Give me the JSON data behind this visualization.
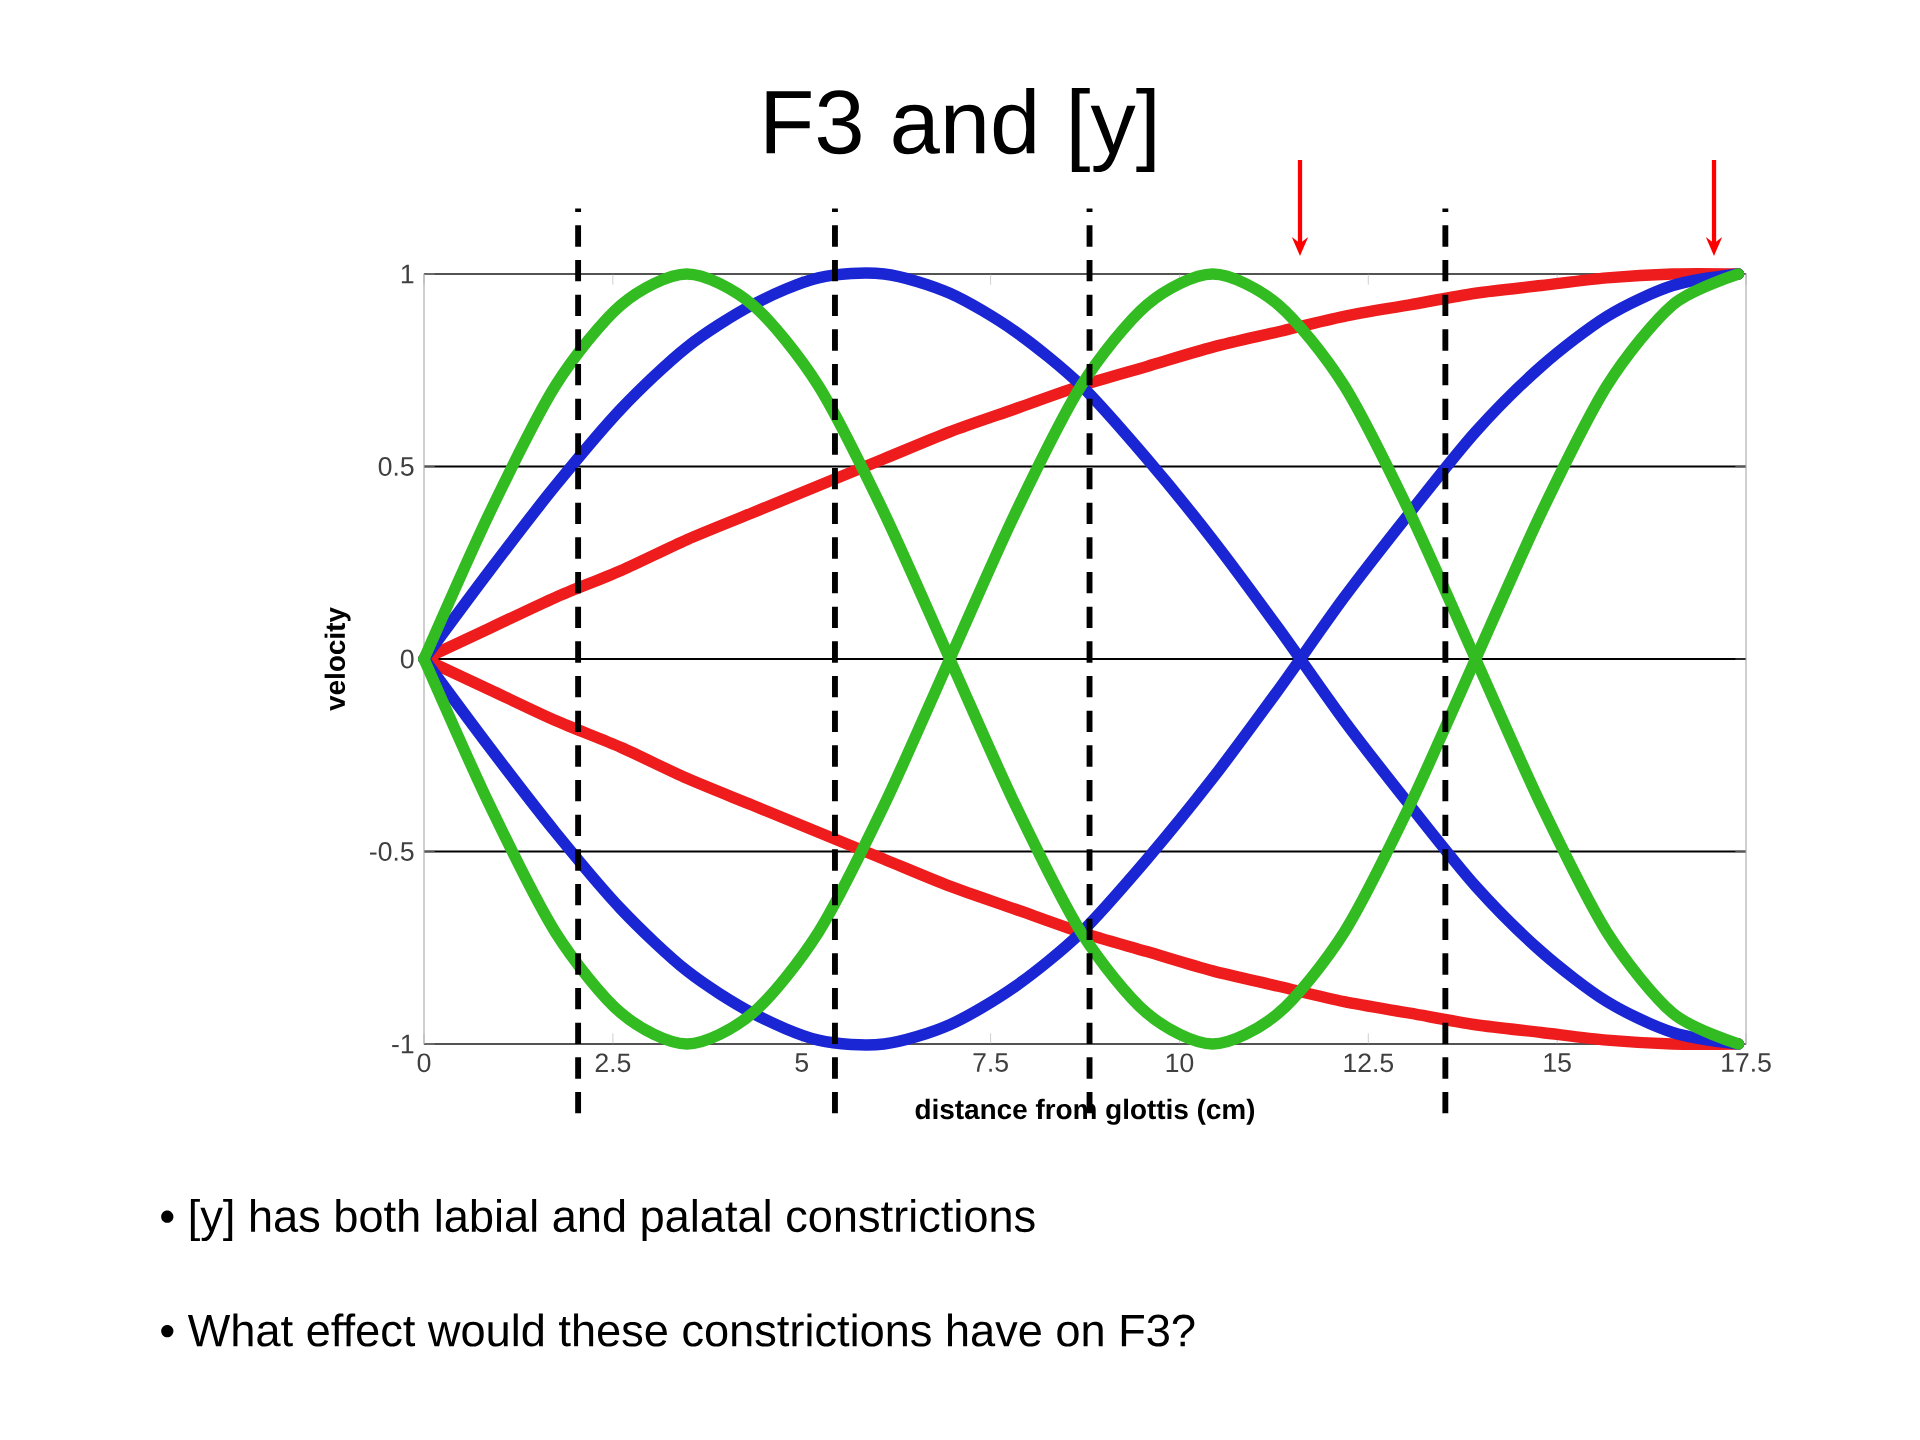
{
  "chart_data": {
    "type": "line",
    "title": "F3 and [y]",
    "xlabel": "distance from glottis (cm)",
    "ylabel": "velocity",
    "annotations": [
      "• [y] has both labial and palatal constrictions",
      "• What effect would these constrictions have on F3?"
    ],
    "x": [
      0,
      0.87,
      1.74,
      2.61,
      3.48,
      4.35,
      5.22,
      6.09,
      6.96,
      7.83,
      8.7,
      9.57,
      10.44,
      11.31,
      12.18,
      13.05,
      13.92,
      14.79,
      15.66,
      16.53,
      17.4
    ],
    "series": [
      {
        "color": "#ee1c1c",
        "values": [
          0,
          0.08,
          0.16,
          0.23,
          0.31,
          0.38,
          0.45,
          0.52,
          0.59,
          0.65,
          0.71,
          0.76,
          0.81,
          0.85,
          0.89,
          0.92,
          0.95,
          0.97,
          0.99,
          1,
          1
        ]
      },
      {
        "color": "#ee1c1c",
        "values": [
          0,
          -0.08,
          -0.16,
          -0.23,
          -0.31,
          -0.38,
          -0.45,
          -0.52,
          -0.59,
          -0.65,
          -0.71,
          -0.76,
          -0.81,
          -0.85,
          -0.89,
          -0.92,
          -0.95,
          -0.97,
          -0.99,
          -1,
          -1
        ]
      },
      {
        "color": "#1a26d4",
        "values": [
          0,
          0.23,
          0.45,
          0.65,
          0.81,
          0.92,
          0.99,
          1,
          0.95,
          0.85,
          0.71,
          0.52,
          0.31,
          0.08,
          -0.16,
          -0.38,
          -0.59,
          -0.76,
          -0.89,
          -0.97,
          -1
        ]
      },
      {
        "color": "#1a26d4",
        "values": [
          0,
          -0.23,
          -0.45,
          -0.65,
          -0.81,
          -0.92,
          -0.99,
          -1,
          -0.95,
          -0.85,
          -0.71,
          -0.52,
          -0.31,
          -0.08,
          0.16,
          0.38,
          0.59,
          0.76,
          0.89,
          0.97,
          1
        ]
      },
      {
        "color": "#33bb22",
        "values": [
          0,
          0.38,
          0.71,
          0.92,
          1,
          0.92,
          0.71,
          0.38,
          0,
          -0.38,
          -0.71,
          -0.92,
          -1,
          -0.92,
          -0.71,
          -0.38,
          0,
          0.38,
          0.71,
          0.92,
          1
        ]
      },
      {
        "color": "#33bb22",
        "values": [
          0,
          -0.38,
          -0.71,
          -0.92,
          -1,
          -0.92,
          -0.71,
          -0.38,
          0,
          0.38,
          0.71,
          0.92,
          1,
          0.92,
          0.71,
          0.38,
          0,
          -0.38,
          -0.71,
          -0.92,
          -1
        ]
      }
    ],
    "xlim": [
      0,
      17.5
    ],
    "xticks": [
      0,
      2.5,
      5,
      7.5,
      10,
      12.5,
      15,
      17.5
    ],
    "ylim": [
      -1,
      1
    ],
    "yticks": [
      -1,
      -0.5,
      0,
      0.5,
      1
    ],
    "grid": "y",
    "marker": "none",
    "line_style": "solid",
    "ref_lines": [
      {
        "axis": "x",
        "value": 2.04,
        "color": "#000000",
        "line_style": "dashed"
      },
      {
        "axis": "x",
        "value": 5.44,
        "color": "#000000",
        "line_style": "dashed"
      },
      {
        "axis": "x",
        "value": 8.81,
        "color": "#000000",
        "line_style": "dashed"
      },
      {
        "axis": "x",
        "value": 13.52,
        "color": "#000000",
        "line_style": "dashed"
      }
    ]
  }
}
